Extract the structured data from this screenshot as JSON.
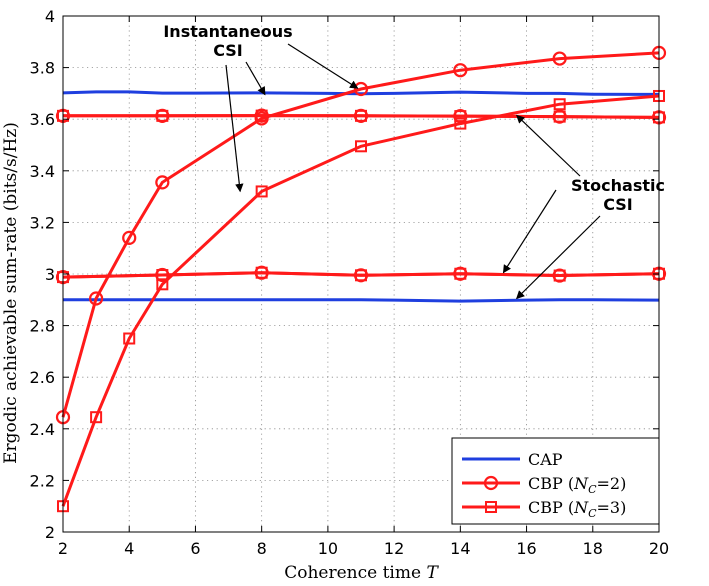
{
  "chart_data": {
    "type": "line",
    "title": "",
    "xlabel": "Coherence time",
    "xlabel_var": "T",
    "ylabel": "Ergodic achievable sum-rate (bits/s/Hz)",
    "xlim": [
      2,
      20
    ],
    "ylim": [
      2,
      4
    ],
    "xticks": [
      2,
      4,
      6,
      8,
      10,
      12,
      14,
      16,
      18,
      20
    ],
    "yticks": [
      2,
      2.2,
      2.4,
      2.6,
      2.8,
      3,
      3.2,
      3.4,
      3.6,
      3.8,
      4
    ],
    "ytick_labels": [
      "2",
      "2.2",
      "2.4",
      "2.6",
      "2.8",
      "3",
      "3.2",
      "3.4",
      "3.6",
      "3.8",
      "4"
    ],
    "grid": true,
    "legend_position": "bottom-right",
    "series": [
      {
        "name": "CAP",
        "legend": true,
        "label_main": "CAP",
        "label_sub": "",
        "label_tail": "",
        "marker": "none",
        "color": "#1f3fdf",
        "x": [
          2,
          3,
          4,
          5,
          6,
          8,
          10,
          11,
          12,
          14,
          16,
          17,
          18,
          20
        ],
        "y": [
          3.702,
          3.706,
          3.706,
          3.701,
          3.701,
          3.702,
          3.7,
          3.699,
          3.7,
          3.705,
          3.7,
          3.7,
          3.697,
          3.696
        ]
      },
      {
        "name": "CAP stochastic",
        "legend": false,
        "marker": "none",
        "color": "#1f3fdf",
        "x": [
          2,
          3,
          4,
          5,
          6,
          8,
          10,
          11,
          12,
          14,
          16,
          17,
          18,
          20
        ],
        "y": [
          2.9,
          2.9,
          2.9,
          2.9,
          2.9,
          2.9,
          2.9,
          2.9,
          2.899,
          2.895,
          2.899,
          2.9,
          2.9,
          2.899
        ]
      },
      {
        "name": "CBP (N_C=2)",
        "legend": true,
        "label_main": "CBP (",
        "label_sub": "C",
        "label_tail": "=2)",
        "marker": "circle",
        "color": "#ff1a1a",
        "x": [
          2,
          3,
          4,
          5,
          8,
          11,
          14,
          17,
          20
        ],
        "y": [
          2.445,
          2.905,
          3.14,
          3.355,
          3.603,
          3.717,
          3.79,
          3.835,
          3.857
        ]
      },
      {
        "name": "CBP (N_C=3)",
        "legend": true,
        "label_main": "CBP (",
        "label_sub": "C",
        "label_tail": "=3)",
        "marker": "square",
        "color": "#ff1a1a",
        "x": [
          2,
          3,
          4,
          5,
          8,
          11,
          14,
          17,
          20
        ],
        "y": [
          2.1,
          2.445,
          2.75,
          2.96,
          3.32,
          3.495,
          3.583,
          3.658,
          3.69
        ]
      },
      {
        "name": "CBP (N_C=2) stochastic",
        "legend": false,
        "marker": "circle",
        "color": "#ff1a1a",
        "x": [
          2,
          5,
          8,
          11,
          14,
          17,
          20
        ],
        "y": [
          3.613,
          3.613,
          3.614,
          3.613,
          3.612,
          3.61,
          3.607
        ]
      },
      {
        "name": "CBP (N_C=3) stochastic",
        "legend": false,
        "marker": "square",
        "color": "#ff1a1a",
        "x": [
          2,
          5,
          8,
          11,
          14,
          17,
          20
        ],
        "y": [
          3.613,
          3.613,
          3.614,
          3.613,
          3.612,
          3.61,
          3.607
        ]
      },
      {
        "name": "CBP (N_C=2) stochastic low",
        "legend": false,
        "marker": "circle-hidden",
        "color": "#ff1a1a",
        "x": [
          2,
          5,
          8,
          11,
          14,
          17,
          20
        ],
        "y": [
          2.988,
          2.996,
          3.005,
          2.995,
          3.001,
          2.994,
          3.001
        ]
      },
      {
        "name": "CBP (N_C=3) stochastic low",
        "legend": false,
        "marker": "square",
        "color": "#ff1a1a",
        "x": [
          2,
          5,
          8,
          11,
          14,
          17,
          20
        ],
        "y": [
          2.988,
          2.996,
          3.005,
          2.995,
          3.001,
          2.994,
          3.001
        ]
      }
    ],
    "annotations": [
      {
        "lines": [
          "Instantaneous",
          "CSI"
        ],
        "anchor_xy": [
          9.0,
          3.96
        ],
        "arrows_to": [
          [
            10.9,
            3.72
          ],
          [
            8.1,
            3.695
          ],
          [
            7.35,
            3.32
          ]
        ]
      },
      {
        "lines": [
          "Stochastic",
          "CSI"
        ],
        "anchor_xy": [
          16.6,
          3.0
        ],
        "arrows_to": [
          [
            15.7,
            3.615
          ],
          [
            15.3,
            3.005
          ],
          [
            15.7,
            2.905
          ]
        ]
      }
    ],
    "legend_var_symbol": "N"
  }
}
